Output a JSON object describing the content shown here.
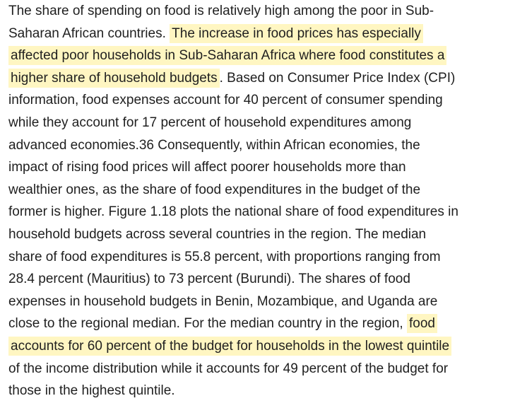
{
  "highlight_color": "#fff6c2",
  "paragraph": {
    "lines": [
      {
        "segments": [
          {
            "text": "The share of spending on food is relatively high among the poor in Sub-",
            "highlight": false
          }
        ]
      },
      {
        "segments": [
          {
            "text": "Saharan African countries. ",
            "highlight": false
          },
          {
            "text": "The increase in food prices has especially",
            "highlight": true
          }
        ]
      },
      {
        "segments": [
          {
            "text": "affected poor households in Sub-Saharan Africa where food constitutes a",
            "highlight": true
          }
        ]
      },
      {
        "segments": [
          {
            "text": "higher share of household budgets",
            "highlight": true
          },
          {
            "text": ". Based on Consumer Price Index (CPI)",
            "highlight": false
          }
        ]
      },
      {
        "segments": [
          {
            "text": "information, food expenses account for 40 percent of consumer spending",
            "highlight": false
          }
        ]
      },
      {
        "segments": [
          {
            "text": "while they account for 17 percent of household expenditures among",
            "highlight": false
          }
        ]
      },
      {
        "segments": [
          {
            "text": "advanced economies.36 Consequently, within African economies, the",
            "highlight": false
          }
        ]
      },
      {
        "segments": [
          {
            "text": "impact of rising food prices will affect poorer households more than",
            "highlight": false
          }
        ]
      },
      {
        "segments": [
          {
            "text": "wealthier ones, as the share of food expenditures in the budget of the",
            "highlight": false
          }
        ]
      },
      {
        "segments": [
          {
            "text": "former is higher. Figure 1.18 plots the national share of food expenditures in",
            "highlight": false
          }
        ]
      },
      {
        "segments": [
          {
            "text": "household budgets across several countries in the region. The median",
            "highlight": false
          }
        ]
      },
      {
        "segments": [
          {
            "text": "share of food expenditures is 55.8 percent, with proportions ranging from",
            "highlight": false
          }
        ]
      },
      {
        "segments": [
          {
            "text": "28.4 percent (Mauritius) to 73 percent (Burundi). The shares of food",
            "highlight": false
          }
        ]
      },
      {
        "segments": [
          {
            "text": "expenses in household budgets in Benin, Mozambique, and Uganda are",
            "highlight": false
          }
        ]
      },
      {
        "segments": [
          {
            "text": "close to the regional median. For the median country in the region, ",
            "highlight": false
          },
          {
            "text": "food",
            "highlight": true
          }
        ]
      },
      {
        "segments": [
          {
            "text": "accounts for 60 percent of the budget for households in the lowest quintile",
            "highlight": true
          }
        ]
      },
      {
        "segments": [
          {
            "text": "of the income distribution while it accounts for 49 percent of the budget for",
            "highlight": false
          }
        ]
      },
      {
        "segments": [
          {
            "text": "those in the highest quintile.",
            "highlight": false
          }
        ]
      }
    ]
  }
}
